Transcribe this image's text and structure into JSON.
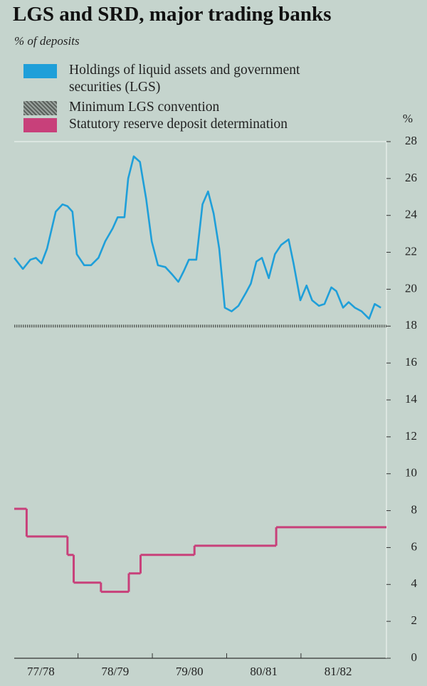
{
  "chart_data": {
    "type": "line",
    "title": "LGS and SRD, major trading banks",
    "subtitle": "% of deposits",
    "ylabel": "%",
    "xlim": [
      1.7,
      61.8
    ],
    "xticks": [
      {
        "value": 6,
        "label": "77/78"
      },
      {
        "value": 18,
        "label": "78/79"
      },
      {
        "value": 30,
        "label": "79/80"
      },
      {
        "value": 42,
        "label": "80/81"
      },
      {
        "value": 54,
        "label": "81/82"
      }
    ],
    "ylim": [
      0,
      28
    ],
    "yticks": [
      0,
      2,
      4,
      6,
      8,
      10,
      12,
      14,
      16,
      18,
      20,
      22,
      24,
      26,
      28
    ],
    "series": [
      {
        "name": "Holdings of liquid assets and government securities (LGS)",
        "color": "#1f9fd9",
        "x": [
          1.7,
          3.1,
          4.3,
          5.2,
          6.1,
          7.0,
          8.4,
          9.5,
          10.3,
          11.1,
          11.8,
          13.0,
          14.1,
          15.3,
          16.4,
          17.6,
          18.4,
          19.5,
          20.1,
          21.0,
          22.0,
          23.0,
          23.9,
          24.9,
          26.1,
          27.2,
          28.2,
          29.1,
          29.9,
          31.1,
          32.1,
          33.0,
          33.9,
          34.8,
          35.7,
          36.8,
          37.9,
          39.1,
          39.9,
          40.8,
          41.7,
          42.8,
          43.8,
          44.8,
          46.0,
          46.8,
          47.9,
          48.9,
          49.8,
          50.9,
          51.8,
          52.9,
          53.7,
          54.8,
          55.7,
          56.7,
          57.8,
          59.0,
          59.9,
          60.9
        ],
        "values": [
          21.7,
          21.1,
          21.6,
          21.7,
          21.4,
          22.2,
          24.2,
          24.6,
          24.5,
          24.2,
          21.9,
          21.3,
          21.3,
          21.7,
          22.6,
          23.3,
          23.9,
          23.9,
          26.0,
          27.2,
          26.9,
          24.9,
          22.6,
          21.3,
          21.2,
          20.8,
          20.4,
          21.0,
          21.6,
          21.6,
          24.6,
          25.3,
          24.1,
          22.2,
          19.0,
          18.8,
          19.1,
          19.8,
          20.3,
          21.5,
          21.7,
          20.6,
          21.9,
          22.4,
          22.7,
          21.4,
          19.4,
          20.2,
          19.4,
          19.1,
          19.2,
          20.1,
          19.9,
          19.0,
          19.3,
          19.0,
          18.8,
          18.4,
          19.2,
          19.0
        ]
      },
      {
        "name": "Minimum LGS convention",
        "color": "#5a605c",
        "dotted": true,
        "x": [
          1.7,
          61.8
        ],
        "values": [
          18,
          18
        ]
      },
      {
        "name": "Statutory reserve deposit determination",
        "color": "#c8407a",
        "step": "post",
        "x": [
          1.7,
          3.7,
          10.3,
          11.3,
          15.7,
          20.2,
          22.1,
          30.8,
          44.0
        ],
        "values": [
          8.1,
          6.6,
          5.6,
          4.1,
          3.6,
          4.6,
          5.6,
          6.1,
          7.1
        ]
      }
    ]
  }
}
